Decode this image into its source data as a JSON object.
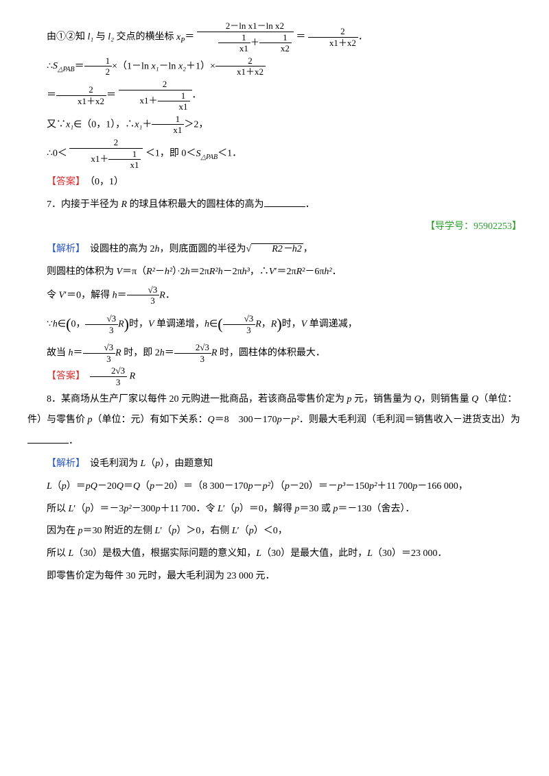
{
  "line1a": "由①②知 ",
  "line1b": " 与 ",
  "line1c": " 交点的横坐标 ",
  "line1d": "＝",
  "line1e": "＝",
  "line1f": "．",
  "l1": "l₁",
  "l2": "l₂",
  "xp": "x_P",
  "frac_top1": "2－ln x1－ln x2",
  "frac_bot1_a": "1",
  "frac_bot1_b": "x1",
  "frac_bot1_c": "1",
  "frac_bot1_d": "x2",
  "frac2_num": "2",
  "frac2_den": "x1＋x2",
  "line2a": "∴",
  "line2b": "＝",
  "line2c": "×（1－ln ",
  "line2d": "－ln ",
  "line2e": "＋1）×",
  "spab": "S_{△PAB}",
  "half_num": "1",
  "half_den": "2",
  "x1": "x₁",
  "x2": "x₂",
  "frac3_num": "2",
  "frac3_den": "x1＋x2",
  "line3a": "＝",
  "line3b": "＝",
  "line3c": "．",
  "frac4_num": "2",
  "frac4_den": "x1＋x2",
  "frac5_num": "2",
  "frac5_den_top": "x1＋",
  "frac5_den_inner_num": "1",
  "frac5_den_inner_den": "x1",
  "line4a": "又∵",
  "line4b": "∈（0，1），∴",
  "line4c": "＋",
  "line4d": "＞2，",
  "frac6_num": "1",
  "frac6_den": "x1",
  "line5a": "∴0＜",
  "line5b": "＜1，即 0＜",
  "line5c": "＜1．",
  "frac7_num": "2",
  "frac7_den_top": "x1＋",
  "frac7_den_inner_num": "1",
  "frac7_den_inner_den": "x1",
  "ans1_label": "【答案】",
  "ans1_value": "（0，1）",
  "q7a": "7．内接于半径为 ",
  "q7b": " 的球且体积最大的圆柱体的高为",
  "q7c": "．",
  "R": "R",
  "guide_label": "【导学号：95902253】",
  "jiexi_label": "【解析】",
  "s7_1a": "设圆柱的高为 2",
  "s7_1b": "，则底面圆的半径为",
  "s7_1c": "，",
  "h": "h",
  "sqrt_rh": "R2－h2",
  "s7_2a": "则圆柱的体积为 ",
  "s7_2b": "＝π（",
  "s7_2c": "－",
  "s7_2d": "）·2",
  "s7_2e": "＝2π",
  "s7_2f": "－2π",
  "s7_2g": "，∴",
  "s7_2h": "′＝2π",
  "s7_2i": "－6π",
  "s7_2j": "．",
  "V": "V",
  "R2": "R²",
  "h2": "h²",
  "R2h": "R²h",
  "h3": "h³",
  "s7_3a": "令 ",
  "s7_3b": "′＝0，解得 ",
  "s7_3c": "＝",
  "s7_3d": "．",
  "sqrt3": "√3",
  "three": "3",
  "s7_4a": "∵",
  "s7_4b": "∈",
  "s7_4c": "时，",
  "s7_4d": " 单调递增，",
  "s7_4e": "∈",
  "s7_4f": "时，",
  "s7_4g": " 单调递减，",
  "interval_open": "（0，",
  "interval_frac_num": "√3",
  "interval_frac_den": "3",
  "interval_R": "R",
  "interval_close": "）",
  "interval2_open": "（",
  "interval2_comma": "，",
  "interval2_R2": "R",
  "interval2_close": "）",
  "s7_5a": "故当 ",
  "s7_5b": "＝",
  "s7_5c": " 时，即 2",
  "s7_5d": "＝",
  "s7_5e": " 时，圆柱体的体积最大．",
  "two_sqrt3": "2√3",
  "ans2_label": "【答案】",
  "ans2_value_suffix": " R",
  "q8a": "8．某商场从生产厂家以每件 20 元购进一批商品，若该商品零售价定为 ",
  "q8b": " 元，销售量为 ",
  "q8c": "，则销售量 ",
  "q8d": "（单位：件）与零售价 ",
  "q8e": "（单位：元）有如下关系：",
  "q8f": "＝8　300－170",
  "q8g": "－",
  "q8h": "．则最大毛利润（毛利润＝销售收入－进货支出）为",
  "q8i": "．",
  "p": "p",
  "Q": "Q",
  "p2": "p²",
  "s8_1a": "设毛利润为 ",
  "s8_1b": "（",
  "s8_1c": "），由题意知",
  "L": "L",
  "s8_2a": "（",
  "s8_2b": "）＝",
  "s8_2c": "－20",
  "s8_2d": "＝",
  "s8_2e": "（",
  "s8_2f": "－20）＝（8 300－170",
  "s8_2g": "－",
  "s8_2h": "）（",
  "s8_2i": "－20）＝－",
  "s8_2j": "－150",
  "s8_2k": "＋11 700",
  "s8_2l": "－166 000，",
  "pQ": "pQ",
  "p3": "p³",
  "s8_3a": "所以 ",
  "s8_3b": "′（",
  "s8_3c": "）＝－3",
  "s8_3d": "－300",
  "s8_3e": "＋11 700．令 ",
  "s8_3f": "′（",
  "s8_3g": "）＝0，解得 ",
  "s8_3h": "＝30 或 ",
  "s8_3i": "＝－130（舍去）．",
  "s8_4a": "因为在 ",
  "s8_4b": "＝30 附近的左侧 ",
  "s8_4c": "′（",
  "s8_4d": "）＞0，右侧 ",
  "s8_4e": "′（",
  "s8_4f": "）＜0，",
  "s8_5a": "所以 ",
  "s8_5b": "（30）是极大值，根据实际问题的意义知，",
  "s8_5c": "（30）是最大值，此时，",
  "s8_5d": "（30）＝23 000．",
  "s8_6": "即零售价定为每件 30 元时，最大毛利润为 23 000 元．",
  "colors": {
    "text": "#000000",
    "blue": "#2a58c5",
    "red": "#d82e2e",
    "green": "#2aa02a",
    "background": "#ffffff"
  },
  "fontsize_pt": 10.5,
  "line_height": 2.2
}
